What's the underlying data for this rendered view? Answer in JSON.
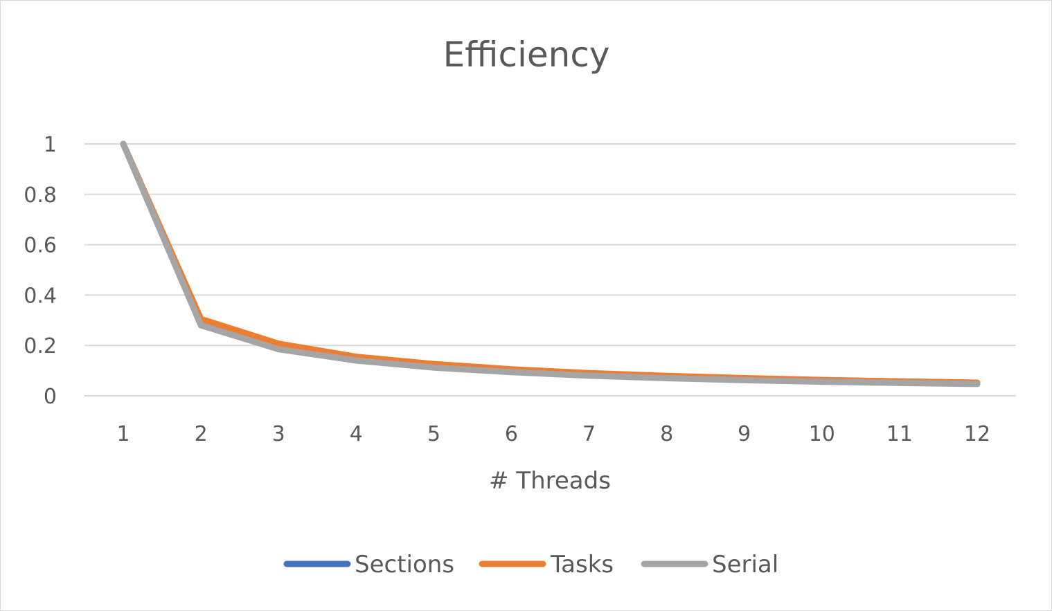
{
  "chart_data": {
    "type": "line",
    "title": "Efficiency",
    "xlabel": "# Threads",
    "ylabel": "",
    "categories": [
      "1",
      "2",
      "3",
      "4",
      "5",
      "6",
      "7",
      "8",
      "9",
      "10",
      "11",
      "12"
    ],
    "ylim": [
      0,
      1
    ],
    "yticks": [
      "0",
      "0.2",
      "0.4",
      "0.6",
      "0.8",
      "1"
    ],
    "grid": true,
    "legend_position": "bottom",
    "series": [
      {
        "name": "Sections",
        "color": "#4472c4",
        "values": [
          1,
          0.3,
          0.205,
          0.152,
          0.124,
          0.103,
          0.089,
          0.078,
          0.069,
          0.062,
          0.057,
          0.052
        ]
      },
      {
        "name": "Tasks",
        "color": "#ed7d31",
        "values": [
          1,
          0.305,
          0.207,
          0.155,
          0.126,
          0.105,
          0.09,
          0.079,
          0.07,
          0.063,
          0.057,
          0.052
        ]
      },
      {
        "name": "Serial",
        "color": "#a5a5a5",
        "values": [
          1,
          0.28,
          0.185,
          0.14,
          0.112,
          0.094,
          0.08,
          0.07,
          0.062,
          0.056,
          0.051,
          0.047
        ]
      }
    ]
  }
}
